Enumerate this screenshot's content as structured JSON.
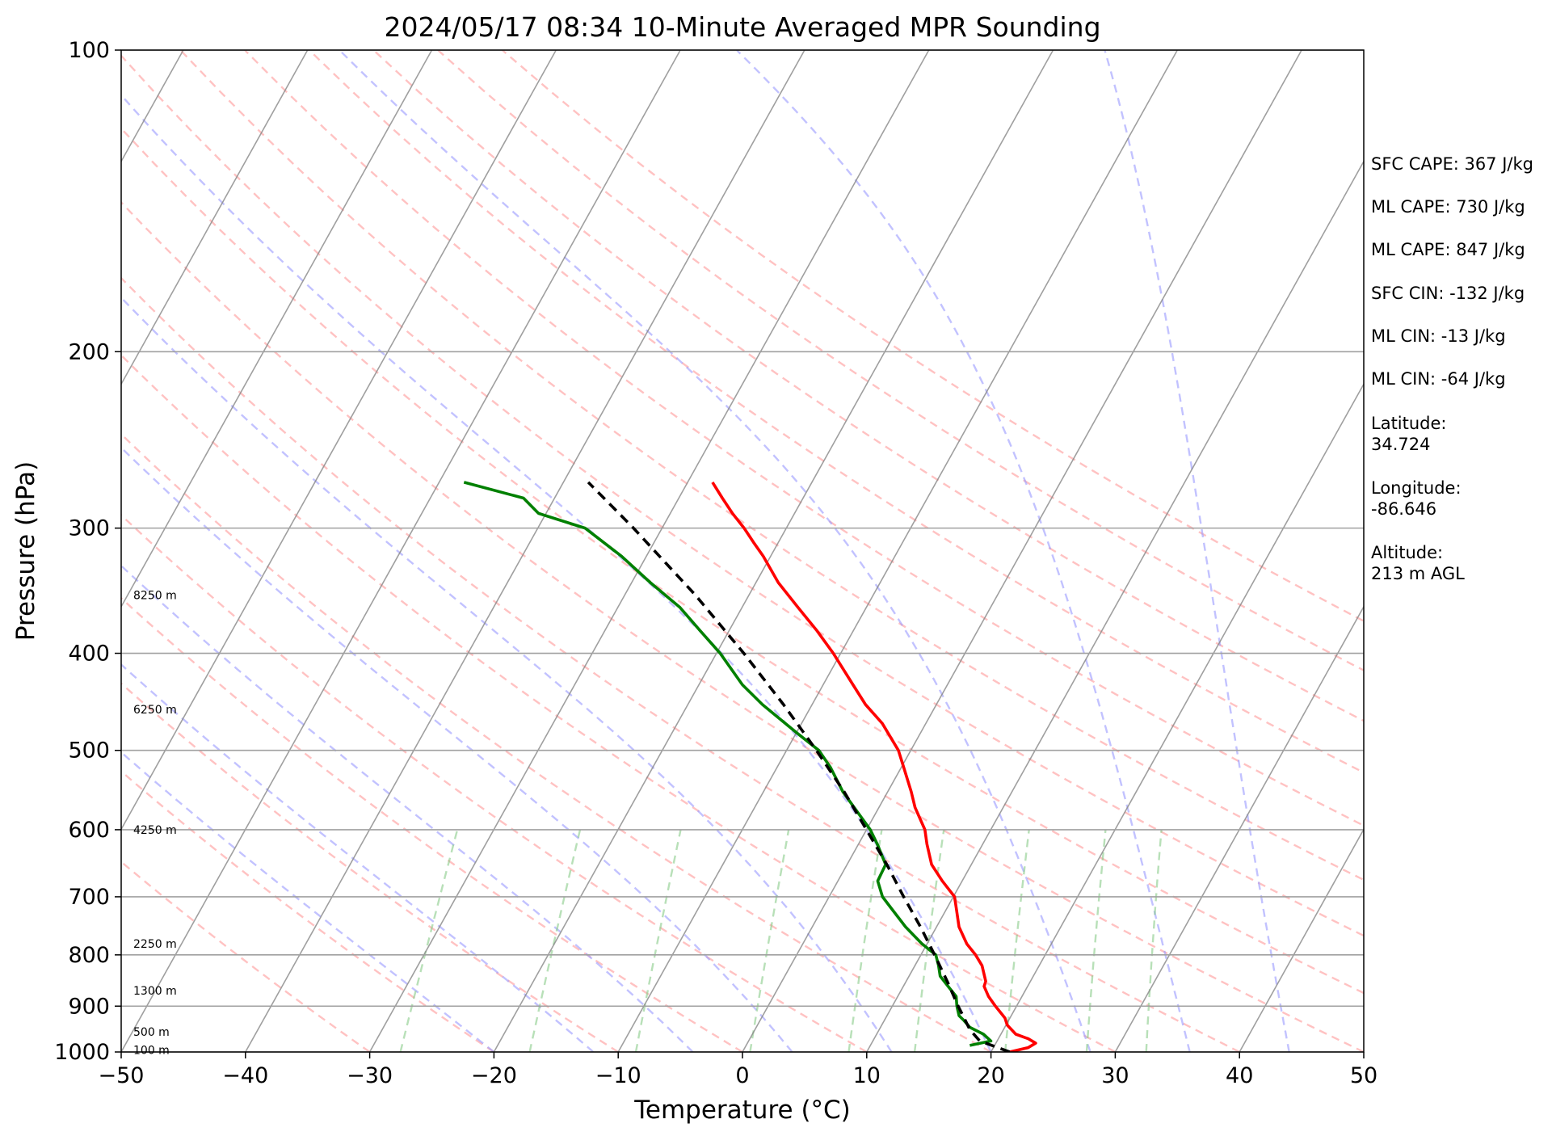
{
  "chart_data": {
    "type": "line",
    "title": "2024/05/17 08:34 10-Minute Averaged MPR Sounding",
    "xlabel": "Temperature (°C)",
    "ylabel": "Pressure (hPa)",
    "xlim": [
      -50,
      50
    ],
    "ylim": [
      1000,
      100
    ],
    "y_scale": "log",
    "skew": "skew-T log-p",
    "grid": true,
    "x_ticks": [
      "−50",
      "−40",
      "−30",
      "−20",
      "−10",
      "0",
      "10",
      "20",
      "30",
      "40",
      "50"
    ],
    "y_ticks": [
      "100",
      "200",
      "300",
      "400",
      "500",
      "600",
      "700",
      "800",
      "900",
      "1000"
    ],
    "height_labels": [
      {
        "p": 995,
        "label": "100 m"
      },
      {
        "p": 955,
        "label": "500 m"
      },
      {
        "p": 868,
        "label": "1300 m"
      },
      {
        "p": 780,
        "label": "2250 m"
      },
      {
        "p": 600,
        "label": "4250 m"
      },
      {
        "p": 455,
        "label": "6250 m"
      },
      {
        "p": 350,
        "label": "8250 m"
      }
    ],
    "series": [
      {
        "role": "temperature",
        "color": "#ff0000",
        "points": [
          [
            1000,
            21.5
          ],
          [
            990,
            22.8
          ],
          [
            980,
            23.2
          ],
          [
            970,
            22.4
          ],
          [
            960,
            21.2
          ],
          [
            940,
            20.1
          ],
          [
            925,
            19.6
          ],
          [
            900,
            18.3
          ],
          [
            880,
            17.3
          ],
          [
            860,
            16.5
          ],
          [
            850,
            16.4
          ],
          [
            820,
            15.4
          ],
          [
            800,
            14.4
          ],
          [
            780,
            13.2
          ],
          [
            750,
            11.8
          ],
          [
            720,
            10.8
          ],
          [
            700,
            10.1
          ],
          [
            675,
            8.4
          ],
          [
            650,
            6.8
          ],
          [
            620,
            5.5
          ],
          [
            600,
            4.7
          ],
          [
            570,
            2.9
          ],
          [
            550,
            1.9
          ],
          [
            520,
            0.2
          ],
          [
            500,
            -1.0
          ],
          [
            470,
            -3.5
          ],
          [
            450,
            -5.7
          ],
          [
            430,
            -7.6
          ],
          [
            400,
            -10.6
          ],
          [
            380,
            -12.9
          ],
          [
            360,
            -15.5
          ],
          [
            340,
            -18.2
          ],
          [
            320,
            -20.6
          ],
          [
            310,
            -22.0
          ],
          [
            300,
            -23.4
          ],
          [
            290,
            -25.0
          ],
          [
            280,
            -26.5
          ],
          [
            270,
            -28.0
          ]
        ]
      },
      {
        "role": "dewpoint",
        "color": "#008000",
        "points": [
          [
            985,
            18.0
          ],
          [
            975,
            19.5
          ],
          [
            960,
            18.6
          ],
          [
            945,
            17.2
          ],
          [
            930,
            16.4
          ],
          [
            920,
            15.8
          ],
          [
            900,
            15.2
          ],
          [
            880,
            14.7
          ],
          [
            860,
            13.6
          ],
          [
            840,
            12.5
          ],
          [
            820,
            11.9
          ],
          [
            800,
            11.2
          ],
          [
            780,
            9.6
          ],
          [
            750,
            7.5
          ],
          [
            720,
            5.6
          ],
          [
            700,
            4.3
          ],
          [
            675,
            3.2
          ],
          [
            650,
            3.1
          ],
          [
            620,
            1.5
          ],
          [
            600,
            0.3
          ],
          [
            570,
            -2.0
          ],
          [
            550,
            -3.6
          ],
          [
            520,
            -5.7
          ],
          [
            500,
            -7.4
          ],
          [
            480,
            -10.0
          ],
          [
            450,
            -14.0
          ],
          [
            430,
            -16.5
          ],
          [
            400,
            -19.7
          ],
          [
            380,
            -22.3
          ],
          [
            360,
            -25.0
          ],
          [
            340,
            -28.5
          ],
          [
            320,
            -32.0
          ],
          [
            300,
            -36.2
          ],
          [
            290,
            -40.6
          ],
          [
            280,
            -42.5
          ],
          [
            270,
            -48.0
          ]
        ]
      },
      {
        "role": "parcel",
        "color": "#000000",
        "style": "dashed",
        "points": [
          [
            1000,
            21.5
          ],
          [
            975,
            18.6
          ],
          [
            950,
            17.3
          ],
          [
            900,
            15.3
          ],
          [
            850,
            13.3
          ],
          [
            800,
            11.1
          ],
          [
            750,
            8.7
          ],
          [
            700,
            6.0
          ],
          [
            650,
            3.2
          ],
          [
            600,
            0.0
          ],
          [
            550,
            -3.5
          ],
          [
            500,
            -7.6
          ],
          [
            450,
            -12.3
          ],
          [
            400,
            -17.8
          ],
          [
            350,
            -24.3
          ],
          [
            300,
            -32.3
          ],
          [
            270,
            -38.0
          ]
        ]
      }
    ],
    "annotations": [
      "SFC CAPE: 367 J/kg",
      "ML CAPE: 730 J/kg",
      "ML CAPE: 847 J/kg",
      "SFC CIN: -132 J/kg",
      "ML CIN: -13 J/kg",
      "ML CIN: -64 J/kg",
      "Latitude:",
      "34.724",
      "Longitude:",
      "-86.646",
      "Altitude:",
      "213 m AGL"
    ],
    "reference_lines": {
      "isotherms_color": "#888888",
      "dry_adiabats_color": "#ff9999",
      "moist_adiabats_color": "#9999ff",
      "mixing_ratio_color": "#88cc88"
    }
  }
}
